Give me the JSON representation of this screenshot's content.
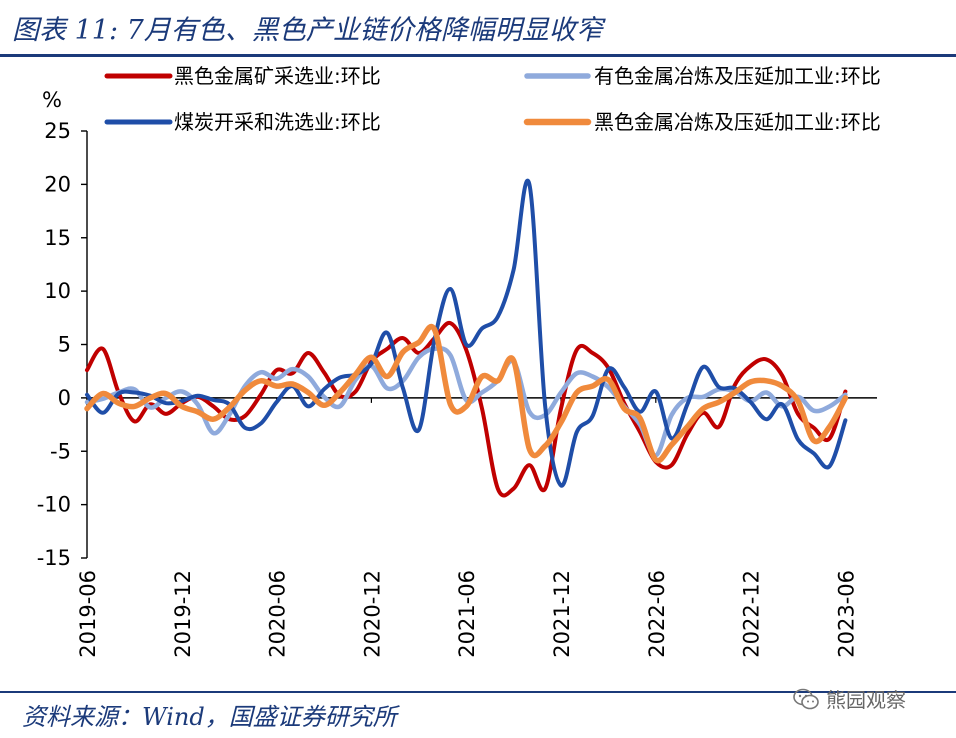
{
  "header": {
    "title": "图表 11: 7月有色、黑色产业链价格降幅明显收窄"
  },
  "footer": {
    "source": "资料来源：Wind，国盛证券研究所",
    "watermark": "熊园观察"
  },
  "chart_data": {
    "type": "line",
    "ylabel": "%",
    "ylim": [
      -15,
      25
    ],
    "yticks": [
      25,
      20,
      15,
      10,
      5,
      0,
      -5,
      -10,
      -15
    ],
    "xlim": [
      0,
      50
    ],
    "xticks": [
      {
        "i": 0,
        "label": "2019-06"
      },
      {
        "i": 6,
        "label": "2019-12"
      },
      {
        "i": 12,
        "label": "2020-06"
      },
      {
        "i": 18,
        "label": "2020-12"
      },
      {
        "i": 24,
        "label": "2021-06"
      },
      {
        "i": 30,
        "label": "2021-12"
      },
      {
        "i": 36,
        "label": "2022-06"
      },
      {
        "i": 42,
        "label": "2022-12"
      },
      {
        "i": 48,
        "label": "2023-06"
      }
    ],
    "legend_position": "top",
    "series": [
      {
        "name": "黑色金属矿采选业:环比",
        "color": "#c00000",
        "values": [
          2.6,
          4.6,
          0.5,
          -2.2,
          -0.6,
          -1.5,
          -0.5,
          0.1,
          -0.8,
          -2.0,
          -1.7,
          0.3,
          2.6,
          2.3,
          4.2,
          2.4,
          0.2,
          0.6,
          3.4,
          4.6,
          5.6,
          4.2,
          5.6,
          7.0,
          4.5,
          -1.0,
          -8.5,
          -8.5,
          -6.3,
          -8.5,
          -1.0,
          4.5,
          4.2,
          2.8,
          -0.5,
          -3.2,
          -6.0,
          -6.3,
          -3.4,
          -1.4,
          -2.7,
          1.2,
          3.0,
          3.6,
          2.1,
          -1.5,
          -2.8,
          -3.8,
          0.6
        ]
      },
      {
        "name": "有色金属冶炼及压延加工业:环比",
        "color": "#8faadc",
        "values": [
          -0.4,
          -0.1,
          0.5,
          0.8,
          -0.9,
          0.0,
          0.6,
          -0.6,
          -3.3,
          -1.6,
          1.1,
          2.4,
          1.8,
          2.7,
          2.0,
          0.1,
          -0.8,
          1.7,
          3.0,
          0.9,
          1.6,
          3.8,
          4.6,
          4.0,
          -0.2,
          0.5,
          1.6,
          3.4,
          -1.3,
          -1.6,
          0.5,
          2.3,
          2.0,
          1.0,
          -0.8,
          -2.5,
          -5.4,
          -1.6,
          0.0,
          0.1,
          0.8,
          0.6,
          -0.3,
          0.5,
          -0.8,
          0.1,
          -1.2,
          -0.8,
          0.3
        ]
      },
      {
        "name": "煤炭开采和洗选业:环比",
        "color": "#1f4ea8",
        "values": [
          0.3,
          -1.4,
          0.4,
          0.5,
          0.2,
          -0.5,
          -0.3,
          0.2,
          -0.2,
          -0.6,
          -2.8,
          -2.4,
          -0.4,
          1.1,
          -0.8,
          0.8,
          1.9,
          2.2,
          3.2,
          6.1,
          0.9,
          -3.0,
          5.5,
          10.2,
          5.0,
          6.5,
          7.6,
          12.0,
          20.0,
          -0.8,
          -8.2,
          -3.2,
          -1.7,
          2.7,
          1.0,
          -1.3,
          0.6,
          -3.8,
          -0.6,
          2.9,
          1.0,
          0.9,
          -0.4,
          -2.0,
          -0.6,
          -3.9,
          -5.2,
          -6.4,
          -2.1
        ]
      },
      {
        "name": "黑色金属冶炼及压延加工业:环比",
        "color": "#f08a3c",
        "values": [
          -1.0,
          0.4,
          -0.5,
          -0.8,
          0.0,
          0.4,
          -0.8,
          -1.3,
          -2.0,
          -0.9,
          0.7,
          1.6,
          1.1,
          1.3,
          0.5,
          -0.7,
          0.5,
          2.2,
          3.8,
          2.0,
          4.3,
          5.2,
          6.4,
          -0.6,
          -0.8,
          2.0,
          1.6,
          3.5,
          -4.8,
          -4.5,
          -2.3,
          0.5,
          1.1,
          1.7,
          -1.0,
          -1.9,
          -5.8,
          -4.4,
          -2.7,
          -1.0,
          -0.4,
          0.5,
          1.5,
          1.6,
          1.1,
          -0.3,
          -4.0,
          -2.7,
          0.0
        ]
      }
    ]
  }
}
